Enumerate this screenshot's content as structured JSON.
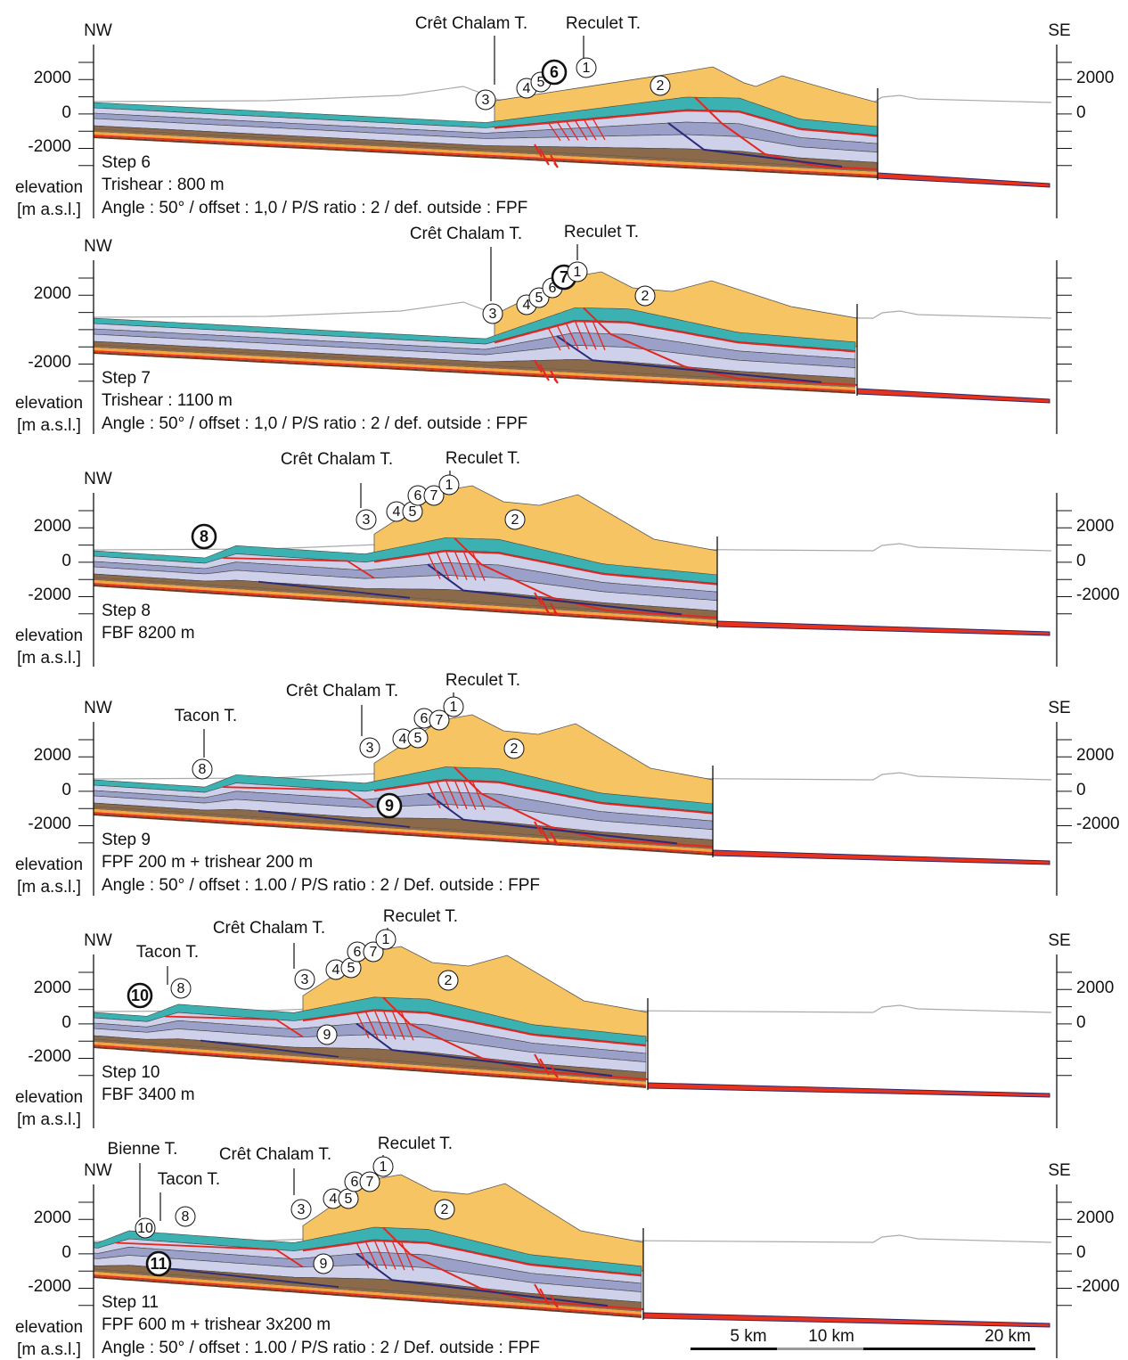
{
  "panels": [
    {
      "nw": "NW",
      "se": "SE",
      "left_ticks": [
        "2000",
        "0",
        "-2000"
      ],
      "right_ticks": [
        "2000",
        "0"
      ],
      "axis_label": [
        "elevation",
        "[m a.s.l.]"
      ],
      "step": "Step 6",
      "description": [
        "Trishear : 800 m",
        "Angle : 50° / offset : 1,0 / P/S ratio : 2 / def. outside : FPF"
      ],
      "thrusts": [
        "Crêt Chalam T.",
        "Reculet T."
      ],
      "markers": [
        {
          "label": "3"
        },
        {
          "label": "4"
        },
        {
          "label": "5"
        },
        {
          "label": "6",
          "bold": true
        },
        {
          "label": "1"
        },
        {
          "label": "2"
        }
      ]
    },
    {
      "nw": "NW",
      "left_ticks": [
        "2000",
        "-2000"
      ],
      "axis_label": [
        "elevation",
        "[m a.s.l.]"
      ],
      "step": "Step 7",
      "description": [
        "Trishear : 1100 m",
        "Angle : 50° / offset : 1,0 / P/S ratio : 2 / def. outside : FPF"
      ],
      "thrusts": [
        "Crêt Chalam T.",
        "Reculet T."
      ],
      "markers": [
        {
          "label": "3"
        },
        {
          "label": "4"
        },
        {
          "label": "5"
        },
        {
          "label": "6"
        },
        {
          "label": "7",
          "bold": true
        },
        {
          "label": "1"
        },
        {
          "label": "2"
        }
      ]
    },
    {
      "nw": "NW",
      "left_ticks": [
        "2000",
        "0",
        "-2000"
      ],
      "right_ticks": [
        "2000",
        "0",
        "-2000"
      ],
      "axis_label": [
        "elevation",
        "[m a.s.l.]"
      ],
      "step": "Step 8",
      "description": [
        "FBF 8200 m"
      ],
      "thrusts": [
        "Crêt Chalam T.",
        "Reculet T."
      ],
      "markers": [
        {
          "label": "8",
          "bold": true
        },
        {
          "label": "3"
        },
        {
          "label": "4"
        },
        {
          "label": "5"
        },
        {
          "label": "6"
        },
        {
          "label": "7"
        },
        {
          "label": "1"
        },
        {
          "label": "2"
        }
      ]
    },
    {
      "nw": "NW",
      "se": "SE",
      "left_ticks": [
        "2000",
        "0",
        "-2000"
      ],
      "right_ticks": [
        "2000",
        "0",
        "-2000"
      ],
      "axis_label": [
        "elevation",
        "[m a.s.l.]"
      ],
      "step": "Step 9",
      "description": [
        "FPF 200 m + trishear 200 m",
        "Angle : 50° / offset : 1.00 / P/S ratio : 2 / Def. outside : FPF"
      ],
      "thrusts": [
        "Tacon T.",
        "Crêt Chalam T.",
        "Reculet T."
      ],
      "markers": [
        {
          "label": "8"
        },
        {
          "label": "3"
        },
        {
          "label": "4"
        },
        {
          "label": "5"
        },
        {
          "label": "6"
        },
        {
          "label": "7"
        },
        {
          "label": "1"
        },
        {
          "label": "9",
          "bold": true
        },
        {
          "label": "2"
        }
      ]
    },
    {
      "nw": "NW",
      "se": "SE",
      "left_ticks": [
        "2000",
        "0",
        "-2000"
      ],
      "right_ticks": [
        "2000",
        "0"
      ],
      "axis_label": [
        "elevation",
        "[m a.s.l.]"
      ],
      "step": "Step 10",
      "description": [
        "FBF 3400 m"
      ],
      "thrusts": [
        "Crêt Chalam T.",
        "Tacon T.",
        "Reculet T."
      ],
      "markers": [
        {
          "label": "10",
          "bold": true
        },
        {
          "label": "8"
        },
        {
          "label": "3"
        },
        {
          "label": "4"
        },
        {
          "label": "5"
        },
        {
          "label": "6"
        },
        {
          "label": "7"
        },
        {
          "label": "1"
        },
        {
          "label": "9"
        },
        {
          "label": "2"
        }
      ]
    },
    {
      "nw": "NW",
      "se": "SE",
      "left_ticks": [
        "2000",
        "0",
        "-2000"
      ],
      "right_ticks": [
        "2000",
        "0",
        "-2000"
      ],
      "axis_label": [
        "elevation",
        "[m a.s.l.]"
      ],
      "step": "Step 11",
      "description": [
        "FPF 600 m + trishear 3x200 m",
        "Angle : 50° / offset : 1.00 / P/S ratio : 2 / Def. outside : FPF"
      ],
      "thrusts": [
        "Bienne T.",
        "Crêt Chalam T.",
        "Tacon T.",
        "Reculet T."
      ],
      "markers": [
        {
          "label": "10"
        },
        {
          "label": "8"
        },
        {
          "label": "3"
        },
        {
          "label": "4"
        },
        {
          "label": "5"
        },
        {
          "label": "6"
        },
        {
          "label": "7"
        },
        {
          "label": "1"
        },
        {
          "label": "11",
          "bold": true
        },
        {
          "label": "9"
        },
        {
          "label": "2"
        }
      ]
    }
  ],
  "scale_bar": [
    "5 km",
    "10 km",
    "20 km"
  ]
}
